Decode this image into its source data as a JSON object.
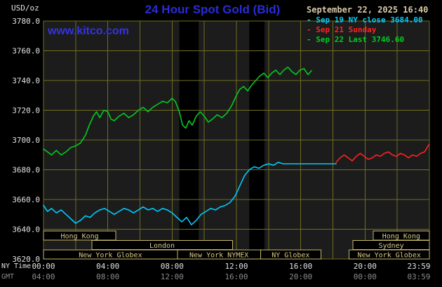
{
  "header": {
    "timestamp": "September 22, 2025 16:40",
    "watermark": "www.kitco.com"
  },
  "legend": {
    "items": [
      {
        "marker": "-",
        "label": "Sep 19 NY close 3684.00",
        "color": "cyan"
      },
      {
        "marker": "-",
        "label": "Sep 21 Sunday",
        "color": "red"
      },
      {
        "marker": "-",
        "label": "Sep 22 Last 3746.60",
        "color": "green"
      }
    ]
  },
  "axes": {
    "x_primary_label": "NY Time",
    "x_secondary_label": "GMT"
  },
  "colors": {
    "background": "#000000",
    "plot_bg": "#1c1c1c",
    "band": "#000000",
    "grid": "#6e6e1e",
    "title": "#2b2bd6",
    "watermark": "#3333e6",
    "date_tan": "#d8c9a8",
    "cyan": "#00ccff",
    "red": "#ff2222",
    "green": "#00cc22",
    "session_border": "#c8b868",
    "session_text": "#d9c98a",
    "axis_text": "#e2e2e2",
    "gmt_text": "#8a8a8a"
  },
  "chart_data": {
    "type": "line",
    "title": "24 Hour Spot Gold (Bid)",
    "ylabel": "USD/oz",
    "ylim": [
      3620,
      3780
    ],
    "ytick_step": 20,
    "x_range": [
      0,
      24
    ],
    "grid": true,
    "legend_position": "top-right",
    "y_ticks": [
      {
        "value": 3780,
        "label": "3780.0"
      },
      {
        "value": 3760,
        "label": "3760.0"
      },
      {
        "value": 3740,
        "label": "3740.0"
      },
      {
        "value": 3720,
        "label": "3720.0"
      },
      {
        "value": 3700,
        "label": "3700.0"
      },
      {
        "value": 3680,
        "label": "3680.0"
      },
      {
        "value": 3660,
        "label": "3660.0"
      },
      {
        "value": 3640,
        "label": "3640.0"
      },
      {
        "value": 3620,
        "label": "3620.0"
      }
    ],
    "x_ticks_ny": [
      {
        "hour": 0,
        "label": "00:00"
      },
      {
        "hour": 4,
        "label": "04:00"
      },
      {
        "hour": 8,
        "label": "08:00"
      },
      {
        "hour": 12,
        "label": "12:00"
      },
      {
        "hour": 16,
        "label": "16:00"
      },
      {
        "hour": 20,
        "label": "20:00"
      },
      {
        "hour": 23.983,
        "label": "23:59"
      }
    ],
    "x_ticks_gmt": [
      {
        "hour": 0,
        "label": "04:00"
      },
      {
        "hour": 4,
        "label": "08:00"
      },
      {
        "hour": 8,
        "label": "12:00"
      },
      {
        "hour": 12,
        "label": "16:00"
      },
      {
        "hour": 16,
        "label": "20:00"
      },
      {
        "hour": 20,
        "label": "00:00"
      },
      {
        "hour": 23.983,
        "label": "03:59"
      }
    ],
    "bands": [
      [
        8.45,
        9.65
      ],
      [
        12.8,
        13.75
      ]
    ],
    "series": [
      {
        "name": "Sep 19 NY close 3684.00",
        "color": "cyan",
        "points": [
          [
            0,
            3656
          ],
          [
            0.25,
            3652
          ],
          [
            0.5,
            3654
          ],
          [
            0.8,
            3651
          ],
          [
            1.1,
            3653
          ],
          [
            1.4,
            3650
          ],
          [
            1.7,
            3647
          ],
          [
            2,
            3644
          ],
          [
            2.3,
            3646
          ],
          [
            2.6,
            3649
          ],
          [
            2.9,
            3648
          ],
          [
            3.2,
            3651
          ],
          [
            3.5,
            3653
          ],
          [
            3.8,
            3654
          ],
          [
            4.1,
            3652
          ],
          [
            4.4,
            3650
          ],
          [
            4.7,
            3652
          ],
          [
            5,
            3654
          ],
          [
            5.3,
            3653
          ],
          [
            5.6,
            3651
          ],
          [
            5.9,
            3653
          ],
          [
            6.2,
            3655
          ],
          [
            6.5,
            3653
          ],
          [
            6.8,
            3654
          ],
          [
            7.1,
            3652
          ],
          [
            7.4,
            3654
          ],
          [
            7.7,
            3653
          ],
          [
            8,
            3651
          ],
          [
            8.3,
            3648
          ],
          [
            8.6,
            3645
          ],
          [
            8.9,
            3648
          ],
          [
            9.2,
            3643
          ],
          [
            9.5,
            3646
          ],
          [
            9.8,
            3650
          ],
          [
            10.1,
            3652
          ],
          [
            10.4,
            3654
          ],
          [
            10.7,
            3653
          ],
          [
            11,
            3655
          ],
          [
            11.3,
            3656
          ],
          [
            11.6,
            3658
          ],
          [
            11.9,
            3662
          ],
          [
            12.2,
            3669
          ],
          [
            12.5,
            3676
          ],
          [
            12.8,
            3680
          ],
          [
            13.1,
            3682
          ],
          [
            13.4,
            3681
          ],
          [
            13.7,
            3683
          ],
          [
            14,
            3684
          ],
          [
            14.3,
            3683
          ],
          [
            14.6,
            3685
          ],
          [
            14.9,
            3684
          ],
          [
            15.4,
            3684
          ],
          [
            16,
            3684
          ],
          [
            16.6,
            3684
          ],
          [
            17.2,
            3684
          ],
          [
            17.8,
            3684
          ],
          [
            18.2,
            3684
          ]
        ]
      },
      {
        "name": "Sep 21 Sunday",
        "color": "red",
        "points": [
          [
            18.2,
            3685
          ],
          [
            18.45,
            3688
          ],
          [
            18.7,
            3690
          ],
          [
            18.95,
            3688
          ],
          [
            19.2,
            3686
          ],
          [
            19.45,
            3689
          ],
          [
            19.7,
            3691
          ],
          [
            19.95,
            3689
          ],
          [
            20.2,
            3687
          ],
          [
            20.45,
            3688
          ],
          [
            20.7,
            3690
          ],
          [
            20.95,
            3689
          ],
          [
            21.2,
            3691
          ],
          [
            21.45,
            3692
          ],
          [
            21.7,
            3690
          ],
          [
            21.95,
            3689
          ],
          [
            22.2,
            3691
          ],
          [
            22.45,
            3690
          ],
          [
            22.7,
            3688
          ],
          [
            22.95,
            3690
          ],
          [
            23.2,
            3689
          ],
          [
            23.45,
            3691
          ],
          [
            23.7,
            3692
          ],
          [
            23.98,
            3697
          ]
        ]
      },
      {
        "name": "Sep 22 Last 3746.60",
        "color": "green",
        "points": [
          [
            0,
            3694
          ],
          [
            0.25,
            3692
          ],
          [
            0.5,
            3690
          ],
          [
            0.8,
            3693
          ],
          [
            1.1,
            3690
          ],
          [
            1.4,
            3692
          ],
          [
            1.7,
            3695
          ],
          [
            2,
            3696
          ],
          [
            2.3,
            3698
          ],
          [
            2.6,
            3703
          ],
          [
            2.85,
            3710
          ],
          [
            3.1,
            3716
          ],
          [
            3.3,
            3719
          ],
          [
            3.5,
            3715
          ],
          [
            3.75,
            3720
          ],
          [
            4,
            3719
          ],
          [
            4.2,
            3714
          ],
          [
            4.4,
            3713
          ],
          [
            4.7,
            3716
          ],
          [
            5,
            3718
          ],
          [
            5.3,
            3715
          ],
          [
            5.6,
            3717
          ],
          [
            5.9,
            3720
          ],
          [
            6.2,
            3722
          ],
          [
            6.5,
            3719
          ],
          [
            6.8,
            3722
          ],
          [
            7.1,
            3724
          ],
          [
            7.4,
            3726
          ],
          [
            7.7,
            3725
          ],
          [
            8,
            3728
          ],
          [
            8.2,
            3726
          ],
          [
            8.45,
            3719
          ],
          [
            8.65,
            3710
          ],
          [
            8.85,
            3708
          ],
          [
            9.05,
            3713
          ],
          [
            9.25,
            3710
          ],
          [
            9.5,
            3716
          ],
          [
            9.75,
            3719
          ],
          [
            10,
            3716
          ],
          [
            10.25,
            3712
          ],
          [
            10.5,
            3714
          ],
          [
            10.8,
            3717
          ],
          [
            11.1,
            3715
          ],
          [
            11.4,
            3718
          ],
          [
            11.7,
            3723
          ],
          [
            12,
            3730
          ],
          [
            12.2,
            3734
          ],
          [
            12.45,
            3736
          ],
          [
            12.7,
            3733
          ],
          [
            12.95,
            3737
          ],
          [
            13.2,
            3740
          ],
          [
            13.45,
            3743
          ],
          [
            13.7,
            3745
          ],
          [
            13.95,
            3742
          ],
          [
            14.2,
            3745
          ],
          [
            14.45,
            3747
          ],
          [
            14.7,
            3744
          ],
          [
            14.95,
            3747
          ],
          [
            15.2,
            3749
          ],
          [
            15.45,
            3746
          ],
          [
            15.7,
            3744
          ],
          [
            15.95,
            3747
          ],
          [
            16.2,
            3748
          ],
          [
            16.45,
            3744
          ],
          [
            16.67,
            3746.6
          ]
        ]
      }
    ],
    "sessions": [
      {
        "row": 0,
        "label": "Hong Kong",
        "start": 0,
        "end": 4.5
      },
      {
        "row": 0,
        "label": "Hong Kong",
        "start": 20.5,
        "end": 24
      },
      {
        "row": 1,
        "label": "London",
        "start": 3,
        "end": 11.75
      },
      {
        "row": 1,
        "label": "Sydney",
        "start": 19.25,
        "end": 24
      },
      {
        "row": 2,
        "label": "New York Globex",
        "start": 0,
        "end": 8.33
      },
      {
        "row": 2,
        "label": "New York NYMEX",
        "start": 8.33,
        "end": 13.5
      },
      {
        "row": 2,
        "label": "NY Globex",
        "start": 13.5,
        "end": 17.25
      },
      {
        "row": 2,
        "label": "New York Globex",
        "start": 19,
        "end": 24
      }
    ]
  }
}
